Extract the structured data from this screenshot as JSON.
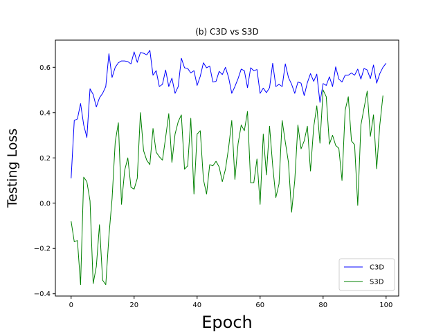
{
  "chart_data": {
    "type": "line",
    "title": "(b) C3D vs S3D",
    "xlabel": "Epoch",
    "ylabel": "Testing Loss",
    "xlim": [
      -5,
      104
    ],
    "ylim": [
      -0.41,
      0.72
    ],
    "xticks": [
      0,
      20,
      40,
      60,
      80,
      100
    ],
    "yticks": [
      -0.4,
      -0.2,
      0.0,
      0.2,
      0.4,
      0.6
    ],
    "ytick_labels": [
      "−0.4",
      "−0.2",
      "0.0",
      "0.2",
      "0.4",
      "0.6"
    ],
    "grid": false,
    "legend_position": "bottom-right",
    "series": [
      {
        "name": "C3D",
        "color": "#0000ff",
        "values": [
          0.11,
          0.365,
          0.372,
          0.44,
          0.345,
          0.29,
          0.505,
          0.48,
          0.425,
          0.465,
          0.485,
          0.515,
          0.66,
          0.555,
          0.6,
          0.62,
          0.628,
          0.628,
          0.625,
          0.615,
          0.668,
          0.622,
          0.665,
          0.662,
          0.655,
          0.675,
          0.565,
          0.585,
          0.515,
          0.525,
          0.588,
          0.515,
          0.552,
          0.485,
          0.515,
          0.64,
          0.598,
          0.595,
          0.575,
          0.585,
          0.52,
          0.56,
          0.62,
          0.598,
          0.605,
          0.535,
          0.538,
          0.582,
          0.568,
          0.6,
          0.555,
          0.485,
          0.515,
          0.55,
          0.592,
          0.585,
          0.51,
          0.598,
          0.585,
          0.59,
          0.485,
          0.508,
          0.488,
          0.51,
          0.618,
          0.515,
          0.525,
          0.515,
          0.615,
          0.555,
          0.525,
          0.485,
          0.535,
          0.53,
          0.475,
          0.532,
          0.572,
          0.538,
          0.57,
          0.445,
          0.528,
          0.52,
          0.558,
          0.515,
          0.602,
          0.548,
          0.535,
          0.565,
          0.565,
          0.575,
          0.565,
          0.592,
          0.548,
          0.595,
          0.588,
          0.55,
          0.61,
          0.53,
          0.572,
          0.6,
          0.618
        ]
      },
      {
        "name": "S3D",
        "color": "#008000",
        "values": [
          -0.08,
          -0.17,
          -0.165,
          -0.36,
          0.115,
          0.095,
          0.01,
          -0.355,
          -0.28,
          -0.095,
          -0.34,
          -0.36,
          -0.145,
          0.02,
          0.27,
          0.355,
          -0.005,
          0.145,
          0.2,
          0.07,
          0.062,
          0.11,
          0.4,
          0.232,
          0.19,
          0.17,
          0.33,
          0.225,
          0.205,
          0.19,
          0.29,
          0.395,
          0.18,
          0.305,
          0.36,
          0.39,
          0.15,
          0.165,
          0.375,
          0.04,
          0.305,
          0.32,
          0.105,
          0.04,
          0.17,
          0.165,
          0.185,
          0.16,
          0.095,
          0.15,
          0.245,
          0.365,
          0.105,
          0.262,
          0.345,
          0.32,
          0.405,
          0.09,
          0.09,
          0.195,
          -0.005,
          0.305,
          0.125,
          0.34,
          0.165,
          0.025,
          0.085,
          0.365,
          0.27,
          0.18,
          -0.04,
          0.1,
          0.345,
          0.24,
          0.275,
          0.34,
          0.142,
          0.335,
          0.43,
          0.265,
          0.5,
          0.47,
          0.26,
          0.3,
          0.255,
          0.242,
          0.1,
          0.41,
          0.47,
          0.275,
          0.258,
          -0.01,
          0.345,
          0.42,
          0.495,
          0.295,
          0.39,
          0.152,
          0.345,
          0.475
        ]
      }
    ]
  }
}
